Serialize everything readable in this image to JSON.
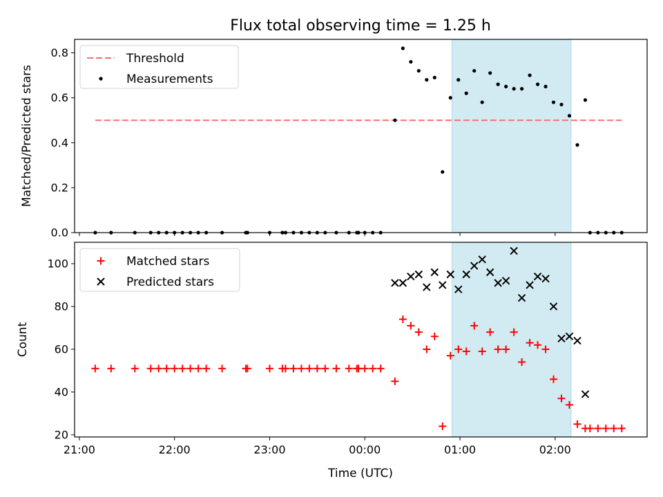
{
  "figure": {
    "title": "Flux total observing time = 1.25 h",
    "xlabel": "Time (UTC)"
  },
  "chart_data": [
    {
      "type": "scatter",
      "ylabel": "Matched/Predicted stars",
      "xlim": [
        "20:57",
        "02:58"
      ],
      "ylim": [
        0,
        0.86
      ],
      "yticks": [
        0.0,
        0.2,
        0.4,
        0.6,
        0.8
      ],
      "ytick_labels": [
        "0.0",
        "0.2",
        "0.4",
        "0.6",
        "0.8"
      ],
      "shaded_span": {
        "start": "00:55",
        "end": "02:10",
        "color": "#add8e6"
      },
      "legend": {
        "position": "top-left",
        "entries": [
          "Threshold",
          "Measurements"
        ]
      },
      "threshold": {
        "name": "Threshold",
        "y": 0.5,
        "x_start": "21:10",
        "x_end": "02:42",
        "color": "#ff6b6b"
      },
      "series": [
        {
          "name": "Measurements",
          "color": "#000000",
          "x": [
            "21:10",
            "21:20",
            "21:35",
            "21:45",
            "21:50",
            "21:55",
            "22:00",
            "22:05",
            "22:10",
            "22:15",
            "22:20",
            "22:30",
            "22:45",
            "22:46",
            "23:00",
            "23:08",
            "23:10",
            "23:15",
            "23:20",
            "23:25",
            "23:30",
            "23:35",
            "23:42",
            "23:50",
            "23:55",
            "23:56",
            "24:00",
            "24:05",
            "24:10",
            "24:19",
            "24:24",
            "24:29",
            "24:34",
            "24:39",
            "24:44",
            "24:49",
            "24:54",
            "24:59",
            "25:04",
            "25:09",
            "25:14",
            "25:19",
            "25:24",
            "25:29",
            "25:34",
            "25:39",
            "25:44",
            "25:49",
            "25:54",
            "25:59",
            "26:04",
            "26:09",
            "26:14",
            "26:19",
            "26:22",
            "26:27",
            "26:32",
            "26:37",
            "26:42"
          ],
          "y": [
            0,
            0,
            0,
            0,
            0,
            0,
            0,
            0,
            0,
            0,
            0,
            0,
            0,
            0,
            0,
            0,
            0,
            0,
            0,
            0,
            0,
            0,
            0,
            0,
            0,
            0,
            0,
            0,
            0,
            0.5,
            0.82,
            0.76,
            0.72,
            0.68,
            0.69,
            0.27,
            0.6,
            0.68,
            0.62,
            0.72,
            0.58,
            0.71,
            0.66,
            0.65,
            0.64,
            0.64,
            0.7,
            0.66,
            0.65,
            0.58,
            0.57,
            0.52,
            0.39,
            0.59,
            0,
            0,
            0,
            0,
            0
          ]
        }
      ]
    },
    {
      "type": "scatter",
      "ylabel": "Count",
      "xlim": [
        "20:57",
        "02:58"
      ],
      "ylim": [
        19,
        110
      ],
      "yticks": [
        20,
        40,
        60,
        80,
        100
      ],
      "ytick_labels": [
        "20",
        "40",
        "60",
        "80",
        "100"
      ],
      "xticks": [
        "21:00",
        "22:00",
        "23:00",
        "00:00",
        "01:00",
        "02:00"
      ],
      "shaded_span": {
        "start": "00:55",
        "end": "02:10",
        "color": "#add8e6"
      },
      "legend": {
        "position": "top-left",
        "entries": [
          "Matched stars",
          "Predicted stars"
        ]
      },
      "series": [
        {
          "name": "Matched stars",
          "marker": "plus",
          "color": "#ff0000",
          "x": [
            "21:10",
            "21:20",
            "21:35",
            "21:45",
            "21:50",
            "21:55",
            "22:00",
            "22:05",
            "22:10",
            "22:15",
            "22:20",
            "22:30",
            "22:45",
            "22:46",
            "23:00",
            "23:08",
            "23:10",
            "23:15",
            "23:20",
            "23:25",
            "23:30",
            "23:35",
            "23:42",
            "23:50",
            "23:55",
            "23:56",
            "24:00",
            "24:05",
            "24:10",
            "24:19",
            "24:24",
            "24:29",
            "24:34",
            "24:39",
            "24:44",
            "24:49",
            "24:54",
            "24:59",
            "25:04",
            "25:09",
            "25:14",
            "25:19",
            "25:24",
            "25:29",
            "25:34",
            "25:39",
            "25:44",
            "25:49",
            "25:54",
            "25:59",
            "26:04",
            "26:09",
            "26:14",
            "26:19",
            "26:22",
            "26:27",
            "26:32",
            "26:37",
            "26:42"
          ],
          "y": [
            51,
            51,
            51,
            51,
            51,
            51,
            51,
            51,
            51,
            51,
            51,
            51,
            51,
            51,
            51,
            51,
            51,
            51,
            51,
            51,
            51,
            51,
            51,
            51,
            51,
            51,
            51,
            51,
            51,
            45,
            74,
            71,
            68,
            60,
            66,
            24,
            57,
            60,
            59,
            71,
            59,
            68,
            60,
            60,
            68,
            54,
            63,
            62,
            60,
            46,
            37,
            34,
            25,
            23,
            23,
            23,
            23,
            23,
            23
          ]
        },
        {
          "name": "Predicted stars",
          "marker": "x",
          "color": "#000000",
          "x": [
            "24:19",
            "24:24",
            "24:29",
            "24:34",
            "24:39",
            "24:44",
            "24:49",
            "24:54",
            "24:59",
            "25:04",
            "25:09",
            "25:14",
            "25:19",
            "25:24",
            "25:29",
            "25:34",
            "25:39",
            "25:44",
            "25:49",
            "25:54",
            "25:59",
            "26:04",
            "26:09",
            "26:14",
            "26:19"
          ],
          "y": [
            91,
            91,
            94,
            95,
            89,
            96,
            90,
            95,
            88,
            95,
            99,
            102,
            96,
            91,
            92,
            106,
            84,
            90,
            94,
            93,
            80,
            65,
            66,
            64,
            39
          ]
        }
      ]
    }
  ]
}
